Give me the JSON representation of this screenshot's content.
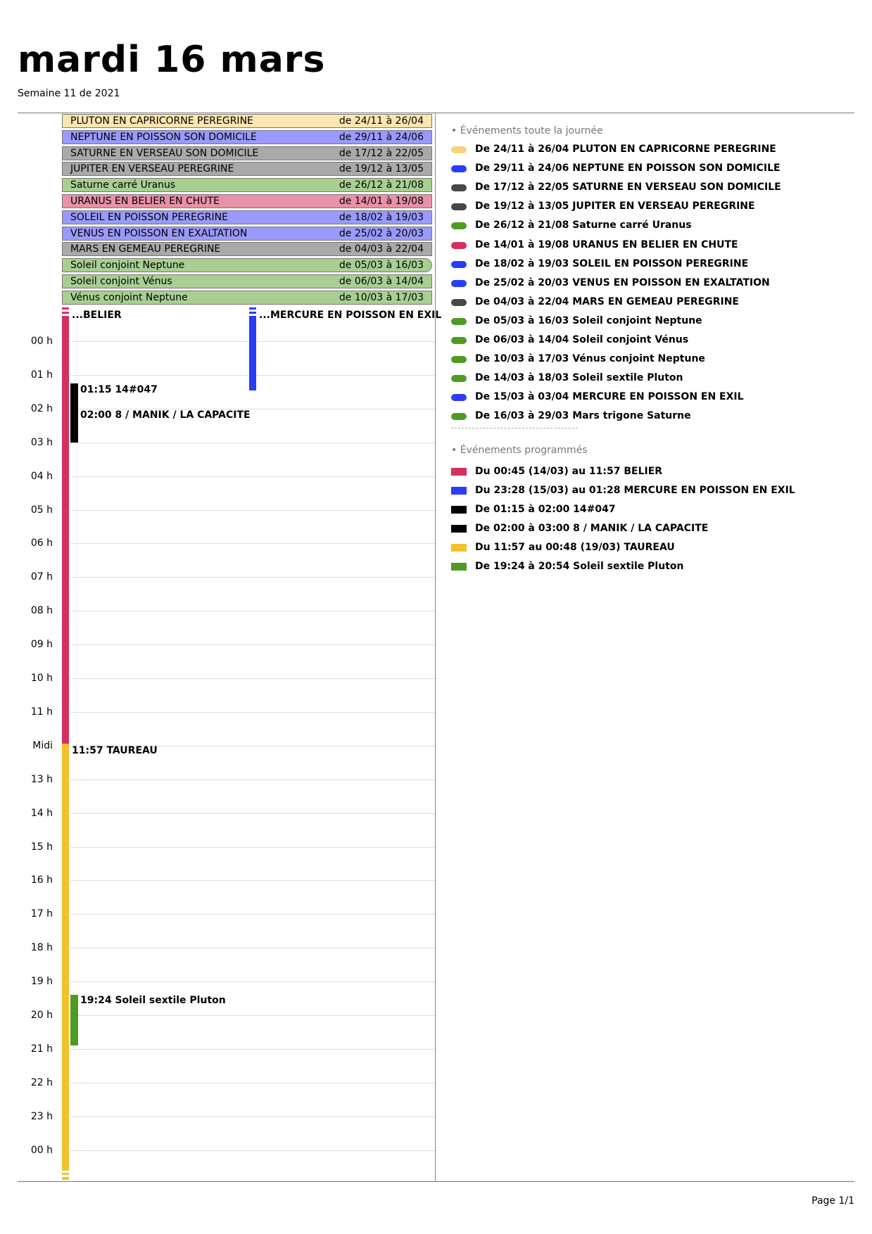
{
  "header": {
    "title": "mardi 16 mars",
    "subtitle": "Semaine 11 de 2021"
  },
  "all_day_banners": [
    {
      "title": "PLUTON EN CAPRICORNE PEREGRINE",
      "dates": "de 24/11 à 26/04",
      "color": "#fbe5b0"
    },
    {
      "title": "NEPTUNE EN POISSON SON DOMICILE",
      "dates": "de 29/11 à 24/06",
      "color": "#9a9afd"
    },
    {
      "title": "SATURNE EN VERSEAU SON DOMICILE",
      "dates": "de 17/12 à 22/05",
      "color": "#a9a9a9"
    },
    {
      "title": "JUPITER EN VERSEAU PEREGRINE",
      "dates": "de 19/12 à 13/05",
      "color": "#a9a9a9"
    },
    {
      "title": "Saturne carré Uranus",
      "dates": "de 26/12 à 21/08",
      "color": "#a8cf91"
    },
    {
      "title": "URANUS EN BELIER EN CHUTE",
      "dates": "de 14/01 à 19/08",
      "color": "#e891a9"
    },
    {
      "title": "SOLEIL EN POISSON PEREGRINE",
      "dates": "de 18/02 à 19/03",
      "color": "#9a9afd"
    },
    {
      "title": "VENUS EN POISSON EN EXALTATION",
      "dates": "de 25/02 à 20/03",
      "color": "#9a9afd"
    },
    {
      "title": "MARS EN GEMEAU PEREGRINE",
      "dates": "de 04/03 à 22/04",
      "color": "#a9a9a9"
    },
    {
      "title": "Soleil conjoint Neptune",
      "dates": "de 05/03 à 16/03",
      "color": "#a8cf91"
    },
    {
      "title": "Soleil conjoint Vénus",
      "dates": "de 06/03 à 14/04",
      "color": "#a8cf91"
    },
    {
      "title": "Vénus conjoint Neptune",
      "dates": "de 10/03 à 17/03",
      "color": "#a8cf91"
    }
  ],
  "hour_labels": [
    "00 h",
    "01 h",
    "02 h",
    "03 h",
    "04 h",
    "05 h",
    "06 h",
    "07 h",
    "08 h",
    "09 h",
    "10 h",
    "11 h",
    "Midi",
    "13 h",
    "14 h",
    "15 h",
    "16 h",
    "17 h",
    "18 h",
    "19 h",
    "20 h",
    "21 h",
    "22 h",
    "23 h",
    "00 h"
  ],
  "timed_events": [
    {
      "label": "...BELIER",
      "color": "#d52f5e",
      "start_hour": 0,
      "end_hour": 11.95,
      "continues_from_previous_day": true
    },
    {
      "label": "...MERCURE EN POISSON EN EXIL",
      "color": "#2a3df5",
      "start_hour": 0,
      "end_hour": 1.467,
      "continues_from_previous_day": true
    },
    {
      "label": "01:15 14#047",
      "color": "#000000",
      "start_hour": 1.25,
      "end_hour": 2.0
    },
    {
      "label": "02:00 8 / MANIK / LA CAPACITE",
      "color": "#000000",
      "start_hour": 2.0,
      "end_hour": 3.0
    },
    {
      "label": "11:57 TAUREAU",
      "color": "#f2c12e",
      "start_hour": 11.95,
      "end_hour": 24.0,
      "continues_to_next_day": true
    },
    {
      "label": "19:24 Soleil sextile Pluton",
      "color": "#4f9a23",
      "start_hour": 19.4,
      "end_hour": 20.9
    }
  ],
  "legend": {
    "all_day_header": "• Événements toute la journée",
    "all_day_items": [
      {
        "text": "De 24/11 à 26/04 PLUTON EN CAPRICORNE PEREGRINE",
        "color": "#f5d47e"
      },
      {
        "text": "De 29/11 à 24/06 NEPTUNE EN POISSON SON DOMICILE",
        "color": "#2a3df5"
      },
      {
        "text": "De 17/12 à 22/05 SATURNE EN VERSEAU SON DOMICILE",
        "color": "#474747"
      },
      {
        "text": "De 19/12 à 13/05 JUPITER EN VERSEAU PEREGRINE",
        "color": "#474747"
      },
      {
        "text": "De 26/12 à 21/08 Saturne carré Uranus",
        "color": "#4f9a23"
      },
      {
        "text": "De 14/01 à 19/08 URANUS EN BELIER EN CHUTE",
        "color": "#d52f5e"
      },
      {
        "text": "De 18/02 à 19/03 SOLEIL EN POISSON PEREGRINE",
        "color": "#2a3df5"
      },
      {
        "text": "De 25/02 à 20/03 VENUS EN POISSON EN EXALTATION",
        "color": "#2a3df5"
      },
      {
        "text": "De 04/03 à 22/04 MARS EN GEMEAU PEREGRINE",
        "color": "#474747"
      },
      {
        "text": "De 05/03 à 16/03 Soleil conjoint Neptune",
        "color": "#4f9a23"
      },
      {
        "text": "De 06/03 à 14/04 Soleil conjoint Vénus",
        "color": "#4f9a23"
      },
      {
        "text": "De 10/03 à 17/03 Vénus conjoint Neptune",
        "color": "#4f9a23"
      },
      {
        "text": "De 14/03 à 18/03 Soleil sextile Pluton",
        "color": "#4f9a23"
      },
      {
        "text": "De 15/03 à 03/04 MERCURE EN POISSON EN EXIL",
        "color": "#2a3df5"
      },
      {
        "text": "De 16/03 à 29/03 Mars trigone Saturne",
        "color": "#4f9a23"
      }
    ],
    "scheduled_header": "• Événements programmés",
    "scheduled_items": [
      {
        "text": "Du 00:45 (14/03) au 11:57 BELIER",
        "color": "#d52f5e"
      },
      {
        "text": "Du 23:28 (15/03) au 01:28 MERCURE EN POISSON EN EXIL",
        "color": "#2a3df5"
      },
      {
        "text": "De 01:15 à 02:00 14#047",
        "color": "#000000"
      },
      {
        "text": "De 02:00 à 03:00 8 / MANIK / LA CAPACITE",
        "color": "#000000"
      },
      {
        "text": "Du 11:57 au 00:48 (19/03) TAUREAU",
        "color": "#f2c12e"
      },
      {
        "text": "De 19:24 à 20:54 Soleil sextile Pluton",
        "color": "#4f9a23"
      }
    ]
  },
  "footer": {
    "page": "Page 1/1"
  }
}
